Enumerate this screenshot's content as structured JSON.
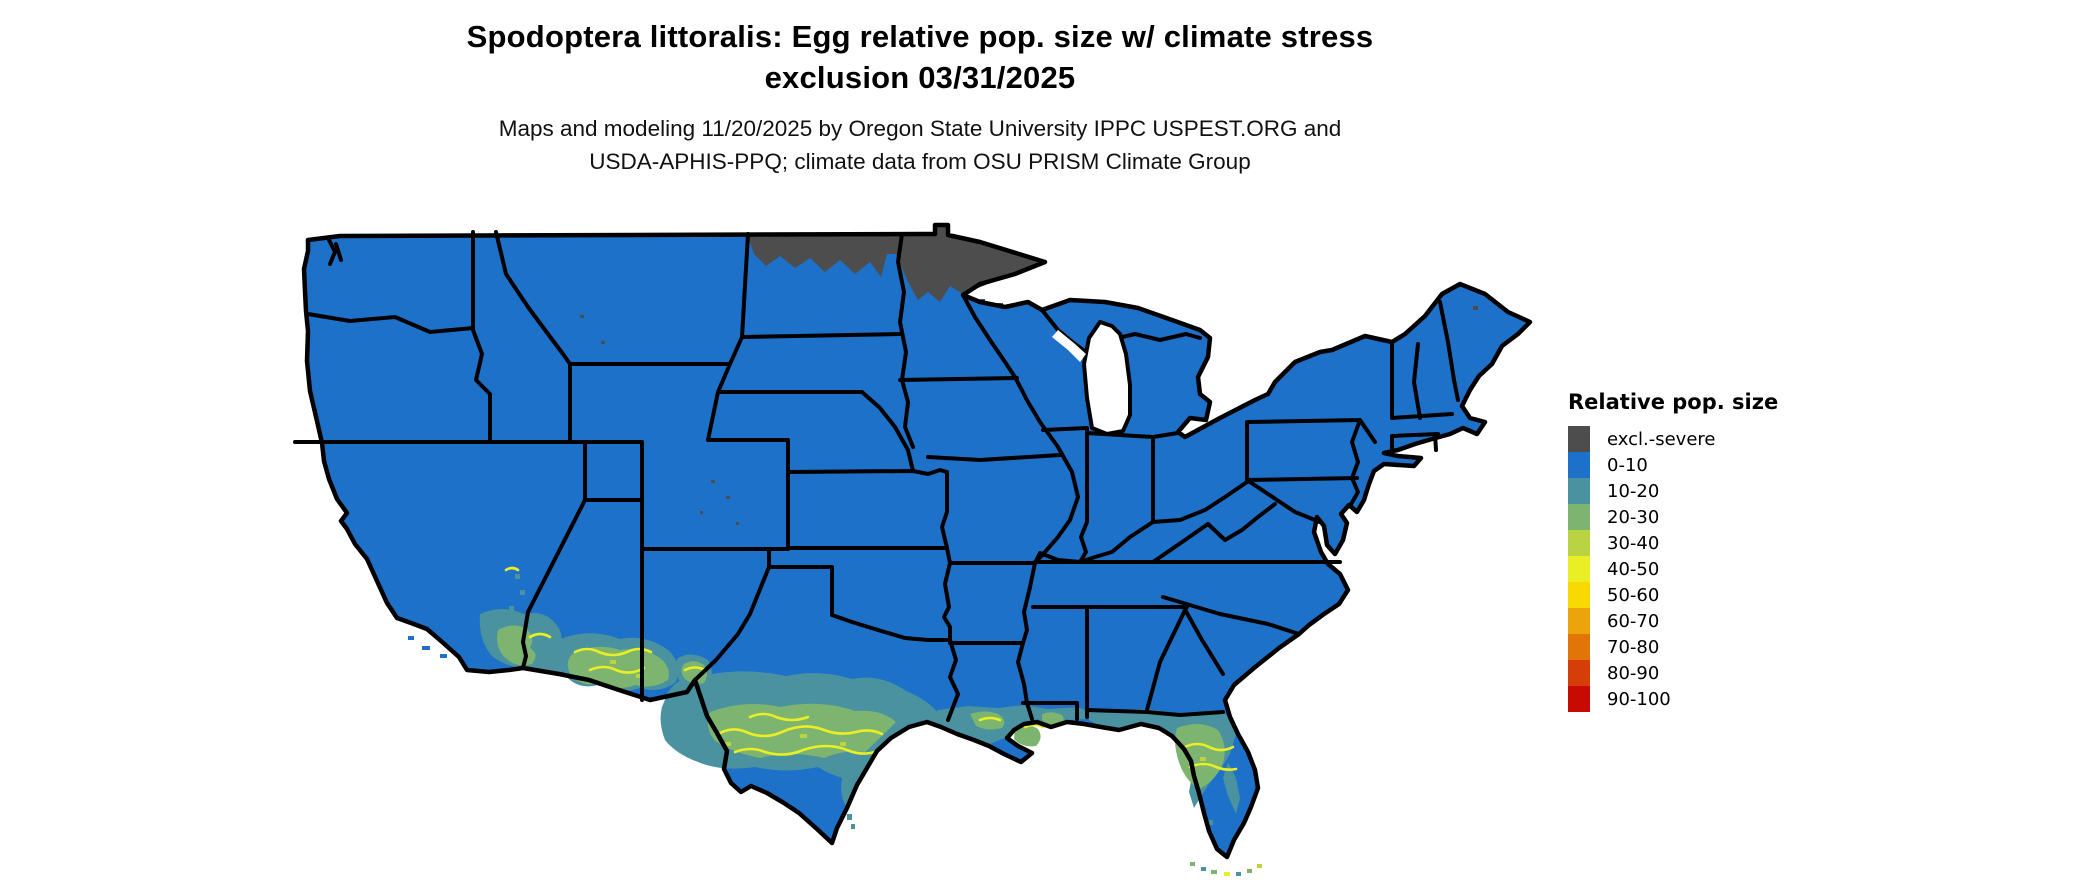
{
  "title": {
    "line1": "Spodoptera littoralis: Egg relative pop. size w/ climate stress",
    "line2": "exclusion 03/31/2025"
  },
  "subtitle": {
    "line1": "Maps and modeling 11/20/2025 by Oregon State University IPPC USPEST.ORG and",
    "line2": "USDA-APHIS-PPQ; climate data from OSU PRISM Climate Group"
  },
  "legend": {
    "title": "Relative pop. size",
    "items": [
      {
        "label": "excl.-severe",
        "color": "#4d4d4d"
      },
      {
        "label": "0-10",
        "color": "#1d71c8"
      },
      {
        "label": "10-20",
        "color": "#4a92a0"
      },
      {
        "label": "20-30",
        "color": "#7cb470"
      },
      {
        "label": "30-40",
        "color": "#b9d342"
      },
      {
        "label": "40-50",
        "color": "#e9ee25"
      },
      {
        "label": "50-60",
        "color": "#f8d904"
      },
      {
        "label": "60-70",
        "color": "#eca40c"
      },
      {
        "label": "70-80",
        "color": "#e27507"
      },
      {
        "label": "80-90",
        "color": "#d53e08"
      },
      {
        "label": "90-100",
        "color": "#c70b02"
      }
    ]
  },
  "map": {
    "date_shown": "03/31/2025",
    "base_value_class": "0-10",
    "colors": {
      "land": "#1d71c8",
      "excluded": "#4d4d4d",
      "teal": "#4a92a0",
      "green": "#7cb470",
      "yellowgreen": "#b9d342",
      "yellow": "#e9ee25",
      "border": "#000000",
      "water": "#ffffff"
    },
    "excluded_areas": "northern North Dakota and northern Minnesota (climate stress exclusion, severe)",
    "elevated_areas": [
      "southeastern California and southern Arizona (10-50)",
      "southern New Mexico / far west Texas (10-40)",
      "southern and coastal Texas (10-50)",
      "Gulf Coast of Louisiana, Mississippi and Alabama (10-30)",
      "northern and central Florida peninsula and Keys (10-50)"
    ]
  }
}
